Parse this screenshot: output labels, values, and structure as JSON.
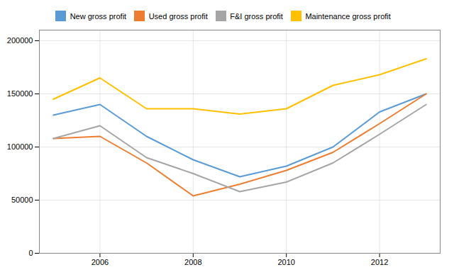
{
  "chart_data": {
    "type": "line",
    "x": [
      2005,
      2006,
      2007,
      2008,
      2009,
      2010,
      2011,
      2012,
      2013
    ],
    "series": [
      {
        "name": "New gross profit",
        "color": "#5B9BD5",
        "values": [
          130000,
          140000,
          110000,
          88000,
          72000,
          82000,
          100000,
          133000,
          150000
        ]
      },
      {
        "name": "Used gross profit",
        "color": "#ED7D31",
        "values": [
          108000,
          110000,
          85000,
          54000,
          65000,
          78000,
          95000,
          122000,
          150000
        ]
      },
      {
        "name": "F&I gross profit",
        "color": "#A5A5A5",
        "values": [
          108000,
          120000,
          90000,
          75000,
          58000,
          67000,
          85000,
          112000,
          140000
        ]
      },
      {
        "name": "Maintenance gross profit",
        "color": "#FFC000",
        "values": [
          145000,
          165000,
          136000,
          136000,
          131000,
          136000,
          158000,
          168000,
          183000
        ]
      }
    ],
    "xlim": [
      2004.7,
      2013.3
    ],
    "xticks": [
      2006,
      2008,
      2010,
      2012
    ],
    "ylim": [
      0,
      210000
    ],
    "yticks": [
      0,
      50000,
      100000,
      150000,
      200000
    ],
    "grid": true,
    "legend": "top"
  }
}
